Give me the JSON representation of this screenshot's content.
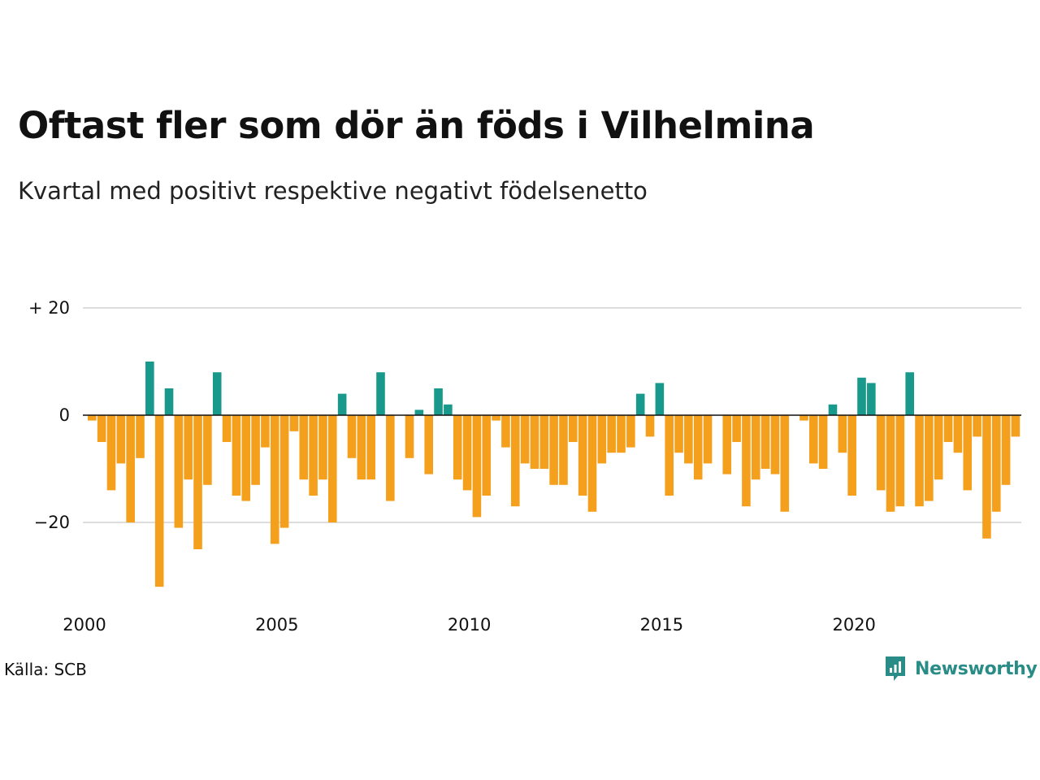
{
  "title": "Oftast fler som dör än föds i Vilhelmina",
  "subtitle": "Kvartal med positivt respektive negativt födelsenetto",
  "source": "Källa: SCB",
  "brand": {
    "name": "Newsworthy",
    "icon": "newsworthy-logo-icon"
  },
  "colors": {
    "positive": "#18998b",
    "negative": "#f5a01d",
    "grid": "#dddddd",
    "zero": "#111111"
  },
  "chart_data": {
    "type": "bar",
    "title": "Oftast fler som dör än föds i Vilhelmina",
    "subtitle": "Kvartal med positivt respektive negativt födelsenetto",
    "x_start": "2000 Q1",
    "x_tick_labels": [
      "2000",
      "2005",
      "2010",
      "2015",
      "2020"
    ],
    "y_ticks": [
      {
        "value": 20,
        "label": "+ 20"
      },
      {
        "value": 0,
        "label": "0"
      },
      {
        "value": -20,
        "label": "−20"
      }
    ],
    "ylim": [
      -33,
      21
    ],
    "grid": true,
    "values": [
      -1,
      -5,
      -14,
      -9,
      -20,
      -8,
      10,
      -32,
      5,
      -21,
      -12,
      -25,
      -13,
      8,
      -5,
      -15,
      -16,
      -13,
      -6,
      -24,
      -21,
      -3,
      -12,
      -15,
      -12,
      -20,
      4,
      -8,
      -12,
      -12,
      8,
      -16,
      0,
      -8,
      1,
      -11,
      5,
      2,
      -12,
      -14,
      -19,
      -15,
      -1,
      -6,
      -17,
      -9,
      -10,
      -10,
      -13,
      -13,
      -5,
      -15,
      -18,
      -9,
      -7,
      -7,
      -6,
      4,
      -4,
      6,
      -15,
      -7,
      -9,
      -12,
      -9,
      0,
      -11,
      -5,
      -17,
      -12,
      -10,
      -11,
      -18,
      0,
      -1,
      -9,
      -10,
      2,
      -7,
      -15,
      7,
      6,
      -14,
      -18,
      -17,
      8,
      -17,
      -16,
      -12,
      -5,
      -7,
      -14,
      -4,
      -23,
      -18,
      -13,
      -4
    ]
  }
}
